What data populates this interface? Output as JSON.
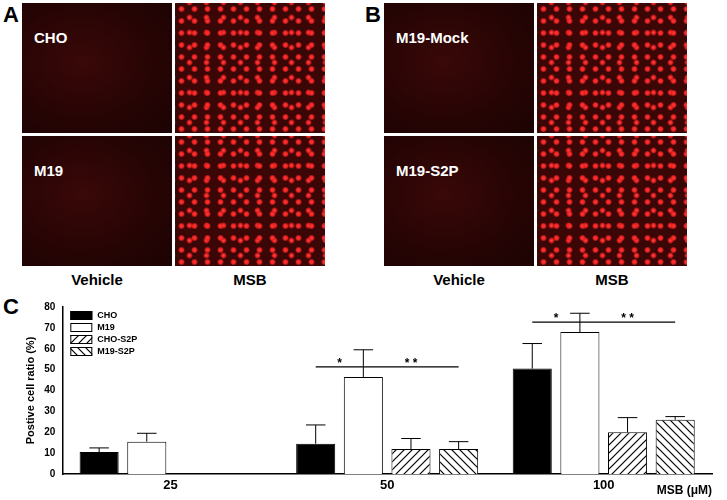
{
  "panels": [
    {
      "letter": "A",
      "columns": [
        "Vehicle",
        "MSB"
      ],
      "rows": [
        "CHO",
        "M19"
      ]
    },
    {
      "letter": "B",
      "columns": [
        "Vehicle",
        "MSB"
      ],
      "rows": [
        "M19-Mock",
        "M19-S2P"
      ]
    }
  ],
  "chart_data": {
    "letter": "C",
    "type": "bar",
    "categories": [
      "25",
      "50",
      "100"
    ],
    "x_label": "MSB (μM)",
    "y_label": "Postive cell ratio (%)",
    "ylim": [
      0,
      80
    ],
    "yticks": [
      0,
      10,
      20,
      30,
      40,
      50,
      60,
      70,
      80
    ],
    "grid": false,
    "legend": "upper left",
    "series": [
      {
        "name": "CHO",
        "color": "#000000",
        "values": [
          10.5,
          14.5,
          50.5
        ],
        "errors": [
          2,
          9,
          12
        ]
      },
      {
        "name": "M19",
        "color": "#ffffff",
        "values": [
          15.5,
          46.5,
          68
        ],
        "errors": [
          4,
          13,
          9
        ]
      },
      {
        "name": "CHO-S2P",
        "color": "#000000",
        "marker": "hatch-forward",
        "values": [
          null,
          12,
          20
        ],
        "errors": [
          null,
          5,
          7
        ]
      },
      {
        "name": "M19-S2P",
        "color": "#000000",
        "marker": "hatch-back",
        "values": [
          null,
          12,
          26
        ],
        "errors": [
          null,
          3.5,
          1.5
        ]
      }
    ],
    "annotations": [
      {
        "category": "50",
        "from": "CHO",
        "to": "M19",
        "text": "*"
      },
      {
        "category": "50",
        "from": "M19",
        "to": "M19-S2P",
        "text": "* *"
      },
      {
        "category": "100",
        "from": "CHO",
        "to": "M19",
        "text": "*"
      },
      {
        "category": "100",
        "from": "M19",
        "to": "M19-S2P",
        "text": "* *"
      }
    ]
  }
}
